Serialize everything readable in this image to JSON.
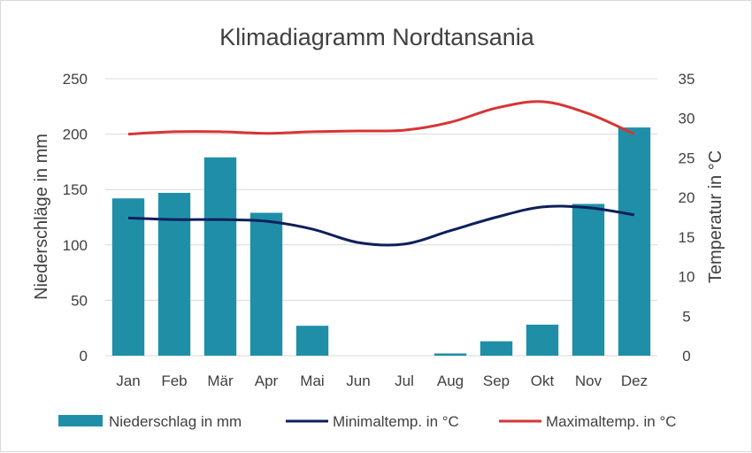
{
  "chart_data": {
    "type": "bar+line",
    "title": "Klimadiagramm Nordtansania",
    "categories": [
      "Jan",
      "Feb",
      "Mär",
      "Apr",
      "Mai",
      "Jun",
      "Jul",
      "Aug",
      "Sep",
      "Okt",
      "Nov",
      "Dez"
    ],
    "y_left": {
      "label": "Niederschläge in mm",
      "range": [
        0,
        250
      ],
      "ticks": [
        "0",
        "50",
        "100",
        "150",
        "200",
        "250"
      ]
    },
    "y_right": {
      "label": "Temperatur in °C",
      "range": [
        0,
        35
      ],
      "ticks": [
        "0",
        "5",
        "10",
        "15",
        "20",
        "25",
        "30",
        "35"
      ]
    },
    "grid": true,
    "legend_position": "bottom",
    "series": [
      {
        "name": "Niederschlag in mm",
        "type": "bar",
        "axis": "left",
        "color": "#1f8fa8",
        "values": [
          142,
          147,
          179,
          129,
          27,
          0,
          0,
          2,
          13,
          28,
          137,
          206
        ]
      },
      {
        "name": "Minimaltemp. in °C",
        "type": "line",
        "axis": "right",
        "color": "#0e1f5b",
        "values": [
          17.4,
          17.2,
          17.2,
          17.0,
          16.0,
          14.3,
          14.1,
          15.8,
          17.5,
          18.8,
          18.7,
          17.8
        ]
      },
      {
        "name": "Maximaltemp. in °C",
        "type": "line",
        "axis": "right",
        "color": "#d83535",
        "values": [
          28.0,
          28.3,
          28.3,
          28.1,
          28.3,
          28.4,
          28.5,
          29.5,
          31.3,
          32.1,
          30.6,
          28.0
        ]
      }
    ]
  }
}
